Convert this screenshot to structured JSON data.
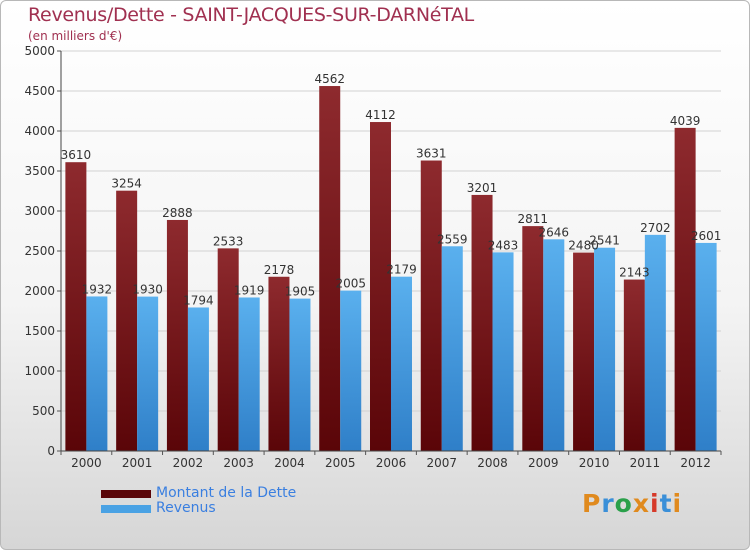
{
  "title": "Revenus/Dette - SAINT-JACQUES-SUR-DARNéTAL",
  "subtitle": "(en milliers d'€)",
  "legend": [
    {
      "label": "Montant de la Dette",
      "color": "#7a1518"
    },
    {
      "label": "Revenus",
      "color": "#4aa2e4"
    }
  ],
  "logo": {
    "text": "Proxiti",
    "colors": [
      "#e08a1e",
      "#3a8fd8",
      "#2aa04a",
      "#e08a1e",
      "#d63a2a",
      "#3a8fd8",
      "#e08a1e"
    ]
  },
  "chart_data": {
    "type": "bar",
    "categories": [
      "2000",
      "2001",
      "2002",
      "2003",
      "2004",
      "2005",
      "2006",
      "2007",
      "2008",
      "2009",
      "2010",
      "2011",
      "2012"
    ],
    "series": [
      {
        "name": "Montant de la Dette",
        "values": [
          3610,
          3254,
          2888,
          2533,
          2178,
          4562,
          4112,
          3631,
          3201,
          2811,
          2480,
          2143,
          4039
        ]
      },
      {
        "name": "Revenus",
        "values": [
          1932,
          1930,
          1794,
          1919,
          1905,
          2005,
          2179,
          2559,
          2483,
          2646,
          2541,
          2702,
          2601
        ]
      }
    ],
    "ylim": [
      0,
      5000
    ],
    "yticks": [
      0,
      500,
      1000,
      1500,
      2000,
      2500,
      3000,
      3500,
      4000,
      4500,
      5000
    ],
    "grid": true,
    "legend_position": "bottom-left"
  }
}
